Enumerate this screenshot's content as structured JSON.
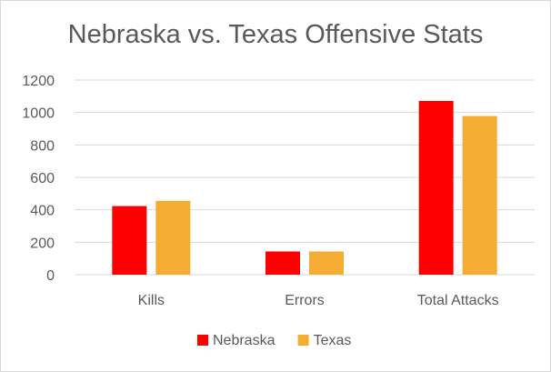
{
  "chart_data": {
    "type": "bar",
    "title": "Nebraska vs. Texas Offensive Stats",
    "xlabel": "",
    "ylabel": "",
    "categories": [
      "Kills",
      "Errors",
      "Total Attacks"
    ],
    "series": [
      {
        "name": "Nebraska",
        "color": "#ff0000",
        "values": [
          423,
          143,
          1071
        ]
      },
      {
        "name": "Texas",
        "color": "#f4ac32",
        "values": [
          455,
          143,
          978
        ]
      }
    ],
    "ylim": [
      0,
      1200
    ],
    "yticks": [
      0,
      200,
      400,
      600,
      800,
      1000,
      1200
    ],
    "grid": true,
    "legend_position": "bottom"
  }
}
